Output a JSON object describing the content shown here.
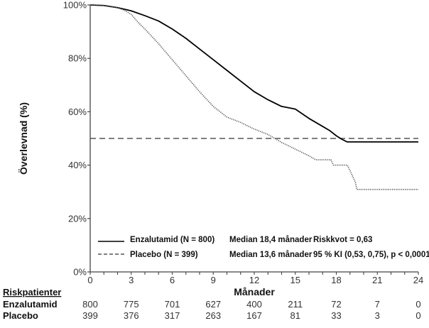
{
  "chart_data": {
    "type": "line",
    "title": "",
    "xlabel": "Månader",
    "ylabel": "Överlevnad (%)",
    "xlim": [
      0,
      24
    ],
    "ylim": [
      0,
      100
    ],
    "x_ticks": [
      0,
      3,
      6,
      9,
      12,
      15,
      18,
      21,
      24
    ],
    "x_minor_step": 1,
    "y_ticks": [
      0,
      20,
      40,
      60,
      80,
      100
    ],
    "y_tick_labels": [
      "0%",
      "20%",
      "40%",
      "60%",
      "80%",
      "100%"
    ],
    "grid": false,
    "reference_line": {
      "y": 50,
      "style": "dashed",
      "label": "median"
    },
    "series": [
      {
        "name": "Enzalutamid (N = 800)",
        "style": "solid",
        "color": "#000000",
        "x": [
          0,
          1,
          2,
          3,
          4,
          5,
          6,
          7,
          8,
          9,
          10,
          11,
          12,
          13,
          14,
          15,
          16,
          17,
          17.5,
          18,
          18.4,
          18.8,
          24
        ],
        "y": [
          100,
          99.8,
          99,
          97.8,
          96,
          94,
          91,
          87.5,
          83.5,
          79.5,
          75.5,
          71.5,
          67.5,
          64.5,
          62,
          61,
          57.5,
          54.5,
          53,
          51,
          49.7,
          48.7,
          48.7
        ]
      },
      {
        "name": "Placebo (N = 399)",
        "style": "dotted",
        "color": "#555555",
        "x": [
          0,
          1,
          2,
          2.5,
          3,
          3.5,
          4,
          5,
          6,
          7,
          8,
          9,
          10,
          10.5,
          11,
          12,
          13,
          13.4,
          14,
          15,
          16,
          16.5,
          17.6,
          17.8,
          18.8,
          19,
          19.4,
          19.5,
          24
        ],
        "y": [
          100,
          99.8,
          99,
          98,
          96.5,
          93.5,
          91,
          85.5,
          79.5,
          73.5,
          67.5,
          62,
          58,
          57,
          56,
          53.5,
          51.5,
          50.3,
          48.5,
          46,
          43.5,
          42,
          42,
          40,
          40,
          38,
          33.5,
          30.9,
          30.9
        ]
      }
    ],
    "legend": {
      "placement": "bottom-left",
      "entries": [
        {
          "label": "Enzalutamid (N = 800)",
          "median": "Median 18,4 månader",
          "stat": "Riskkvot = 0,63"
        },
        {
          "label": "Placebo (N = 399)",
          "median": "Median 13,6 månader",
          "stat": "95 % KI (0,53, 0,75), p < 0,0001"
        }
      ]
    },
    "risk_table": {
      "title": "Riskpatienter",
      "rows": [
        {
          "name": "Enzalutamid",
          "values": [
            800,
            775,
            701,
            627,
            400,
            211,
            72,
            7,
            0
          ]
        },
        {
          "name": "Placebo",
          "values": [
            399,
            376,
            317,
            263,
            167,
            81,
            33,
            3,
            0
          ]
        }
      ]
    }
  }
}
